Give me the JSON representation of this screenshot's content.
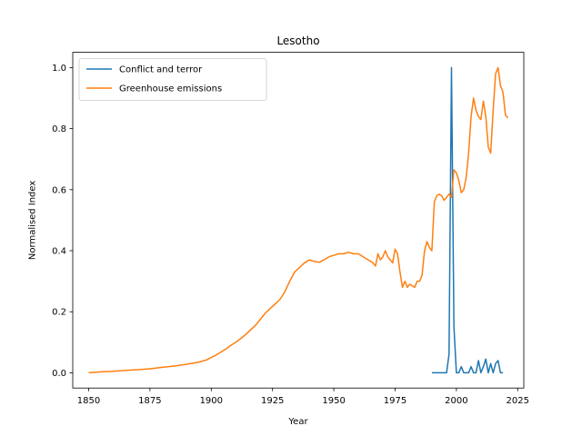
{
  "chart_data": {
    "type": "line",
    "title": "Lesotho",
    "xlabel": "Year",
    "ylabel": "Normalised Index",
    "xlim": [
      1843.5,
      2027.5
    ],
    "ylim": [
      -0.05,
      1.05
    ],
    "xticks": [
      1850,
      1875,
      1900,
      1925,
      1950,
      1975,
      2000,
      2025
    ],
    "yticks": [
      0.0,
      0.2,
      0.4,
      0.6,
      0.8,
      1.0
    ],
    "xtick_labels": [
      "1850",
      "1875",
      "1900",
      "1925",
      "1950",
      "1975",
      "2000",
      "2025"
    ],
    "ytick_labels": [
      "0.0",
      "0.2",
      "0.4",
      "0.6",
      "0.8",
      "1.0"
    ],
    "grid": false,
    "legend_position": "top-left",
    "series": [
      {
        "name": "Conflict and terror",
        "color": "#1f77b4",
        "x": [
          1990,
          1991,
          1992,
          1993,
          1994,
          1995,
          1996,
          1997,
          1998,
          1999,
          2000,
          2001,
          2002,
          2003,
          2004,
          2005,
          2006,
          2007,
          2008,
          2009,
          2010,
          2011,
          2012,
          2013,
          2014,
          2015,
          2016,
          2017,
          2018,
          2019
        ],
        "y": [
          0,
          0,
          0,
          0,
          0,
          0,
          0,
          0.06,
          1.0,
          0.15,
          0.0,
          0.0,
          0.02,
          0.0,
          0.0,
          0.0,
          0.02,
          0.0,
          0.0,
          0.04,
          0.0,
          0.02,
          0.045,
          0.0,
          0.03,
          0.0,
          0.03,
          0.04,
          0.0,
          0.0
        ]
      },
      {
        "name": "Greenhouse emissions",
        "color": "#ff7f0e",
        "x": [
          1850,
          1855,
          1860,
          1865,
          1870,
          1875,
          1880,
          1885,
          1890,
          1895,
          1898,
          1900,
          1902,
          1904,
          1906,
          1908,
          1910,
          1912,
          1914,
          1916,
          1918,
          1920,
          1922,
          1924,
          1926,
          1928,
          1930,
          1932,
          1934,
          1936,
          1938,
          1940,
          1942,
          1944,
          1946,
          1948,
          1950,
          1952,
          1954,
          1956,
          1958,
          1960,
          1962,
          1964,
          1966,
          1967,
          1968,
          1969,
          1970,
          1971,
          1972,
          1973,
          1974,
          1975,
          1976,
          1977,
          1978,
          1979,
          1980,
          1981,
          1982,
          1983,
          1984,
          1985,
          1986,
          1987,
          1988,
          1989,
          1990,
          1991,
          1992,
          1993,
          1994,
          1995,
          1996,
          1997,
          1998,
          1999,
          2000,
          2001,
          2002,
          2003,
          2004,
          2005,
          2006,
          2007,
          2008,
          2009,
          2010,
          2011,
          2012,
          2013,
          2014,
          2015,
          2016,
          2017,
          2018,
          2019,
          2020,
          2021
        ],
        "y": [
          0.0,
          0.003,
          0.005,
          0.008,
          0.01,
          0.013,
          0.018,
          0.022,
          0.028,
          0.035,
          0.042,
          0.05,
          0.058,
          0.068,
          0.078,
          0.09,
          0.1,
          0.112,
          0.125,
          0.14,
          0.155,
          0.175,
          0.195,
          0.21,
          0.225,
          0.24,
          0.265,
          0.3,
          0.33,
          0.345,
          0.36,
          0.37,
          0.365,
          0.362,
          0.37,
          0.38,
          0.385,
          0.39,
          0.39,
          0.395,
          0.39,
          0.39,
          0.38,
          0.37,
          0.36,
          0.35,
          0.39,
          0.37,
          0.38,
          0.4,
          0.38,
          0.37,
          0.36,
          0.405,
          0.39,
          0.33,
          0.28,
          0.3,
          0.28,
          0.29,
          0.285,
          0.28,
          0.3,
          0.3,
          0.32,
          0.4,
          0.43,
          0.41,
          0.4,
          0.56,
          0.58,
          0.585,
          0.58,
          0.565,
          0.575,
          0.585,
          0.575,
          0.665,
          0.655,
          0.63,
          0.59,
          0.6,
          0.64,
          0.72,
          0.84,
          0.9,
          0.86,
          0.84,
          0.83,
          0.89,
          0.84,
          0.74,
          0.72,
          0.86,
          0.98,
          1.0,
          0.94,
          0.92,
          0.845,
          0.835
        ]
      }
    ]
  }
}
